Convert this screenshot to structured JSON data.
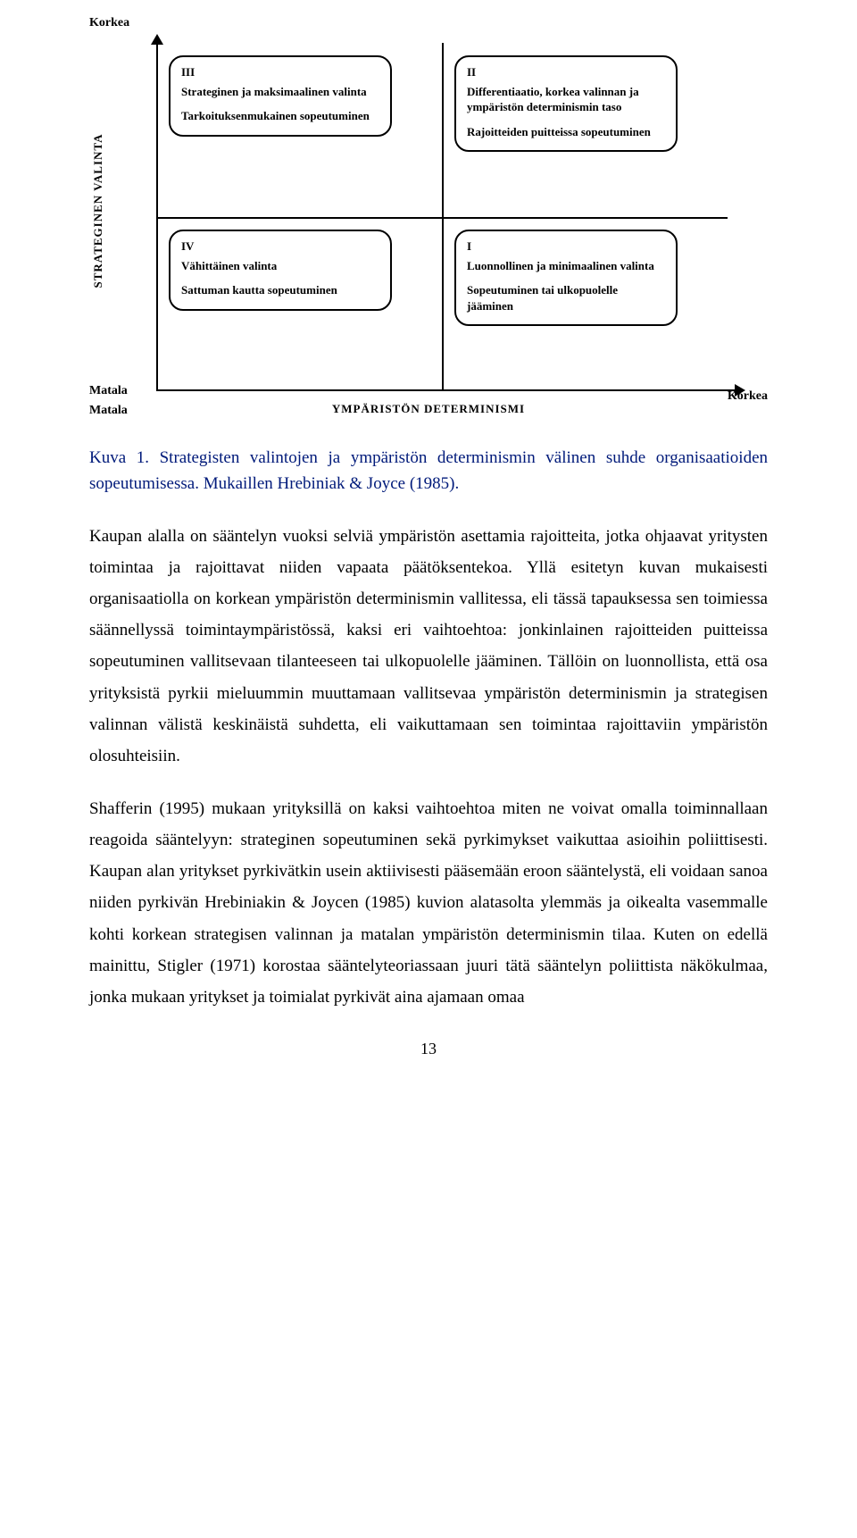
{
  "diagram": {
    "y_axis_title": "STRATEGINEN VALINTA",
    "x_axis_title": "YMPÄRISTÖN DETERMINISMI",
    "y_high": "Korkea",
    "y_low": "Matala",
    "x_low": "Matala",
    "x_high": "Korkea",
    "quadrants": {
      "q3": {
        "roman": "III",
        "title": "Strateginen ja maksimaalinen valinta",
        "desc": "Tarkoituksenmukainen sopeutuminen"
      },
      "q2": {
        "roman": "II",
        "title": "Differentiaatio, korkea valinnan ja ympäristön determinismin taso",
        "desc": "Rajoitteiden puitteissa sopeutuminen"
      },
      "q4": {
        "roman": "IV",
        "title": "Vähittäinen valinta",
        "desc": "Sattuman kautta sopeutuminen"
      },
      "q1": {
        "roman": "I",
        "title": "Luonnollinen ja minimaalinen valinta",
        "desc": "Sopeutuminen tai ulkopuolelle jääminen"
      }
    }
  },
  "caption": "Kuva 1. Strategisten valintojen ja ympäristön determinismin välinen suhde organisaatioiden sopeutumisessa. Mukaillen Hrebiniak & Joyce (1985).",
  "para1": "Kaupan alalla on sääntelyn vuoksi selviä ympäristön asettamia rajoitteita, jotka ohjaavat yritysten toimintaa ja rajoittavat niiden vapaata päätöksentekoa. Yllä esitetyn kuvan mukaisesti organisaatiolla on korkean ympäristön determinismin vallitessa, eli tässä tapauksessa sen toimiessa säännellyssä toimintaympäristössä, kaksi eri vaihtoehtoa: jonkinlainen rajoitteiden puitteissa sopeutuminen vallitsevaan tilanteeseen tai ulkopuolelle jääminen. Tällöin on luonnollista, että osa yrityksistä pyrkii mieluummin muuttamaan vallitsevaa ympäristön determinismin ja strategisen valinnan välistä keskinäistä suhdetta, eli vaikuttamaan sen toimintaa rajoittaviin ympäristön olosuhteisiin.",
  "para2": "Shafferin (1995) mukaan yrityksillä on kaksi vaihtoehtoa miten ne voivat omalla toiminnallaan reagoida sääntelyyn: strateginen sopeutuminen sekä pyrkimykset vaikuttaa asioihin poliittisesti. Kaupan alan yritykset pyrkivätkin usein aktiivisesti pääsemään eroon sääntelystä, eli voidaan sanoa niiden pyrkivän Hrebiniakin & Joycen (1985) kuvion alatasolta ylemmäs ja oikealta vasemmalle kohti korkean strategisen valinnan ja matalan ympäristön determinismin tilaa. Kuten on edellä mainittu, Stigler (1971) korostaa sääntelyteoriassaan juuri tätä sääntelyn poliittista näkökulmaa, jonka mukaan yritykset ja toimialat pyrkivät aina ajamaan omaa",
  "page_number": "13"
}
